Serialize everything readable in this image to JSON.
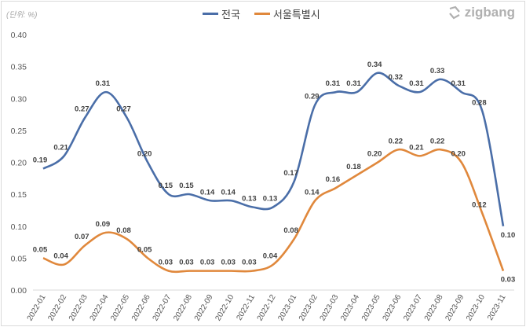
{
  "chart_data": {
    "type": "line",
    "unit_label": "(단위: %)",
    "brand": "zigbang",
    "categories": [
      "2022-01",
      "2022-02",
      "2022-03",
      "2022-04",
      "2022-05",
      "2022-06",
      "2022-07",
      "2022-08",
      "2022-09",
      "2022-10",
      "2022-11",
      "2022-12",
      "2023-01",
      "2023-02",
      "2023-03",
      "2023-04",
      "2023-05",
      "2023-06",
      "2023-07",
      "2023-08",
      "2023-09",
      "2023-10",
      "2023-11"
    ],
    "series": [
      {
        "name": "전국",
        "color": "#4a6ea8",
        "values": [
          0.19,
          0.21,
          0.27,
          0.31,
          0.27,
          0.2,
          0.15,
          0.15,
          0.14,
          0.14,
          0.13,
          0.13,
          0.17,
          0.29,
          0.31,
          0.31,
          0.34,
          0.32,
          0.31,
          0.33,
          0.31,
          0.28,
          0.1
        ]
      },
      {
        "name": "서울특별시",
        "color": "#e0883c",
        "values": [
          0.05,
          0.04,
          0.07,
          0.09,
          0.08,
          0.05,
          0.03,
          0.03,
          0.03,
          0.03,
          0.03,
          0.04,
          0.08,
          0.14,
          0.16,
          0.18,
          0.2,
          0.22,
          0.21,
          0.22,
          0.2,
          0.12,
          0.03
        ]
      }
    ],
    "yticks": [
      "0.00",
      "0.05",
      "0.10",
      "0.15",
      "0.20",
      "0.25",
      "0.30",
      "0.35",
      "0.40"
    ],
    "ylim": [
      0,
      0.4
    ],
    "grid": false,
    "legend": "top-center"
  }
}
